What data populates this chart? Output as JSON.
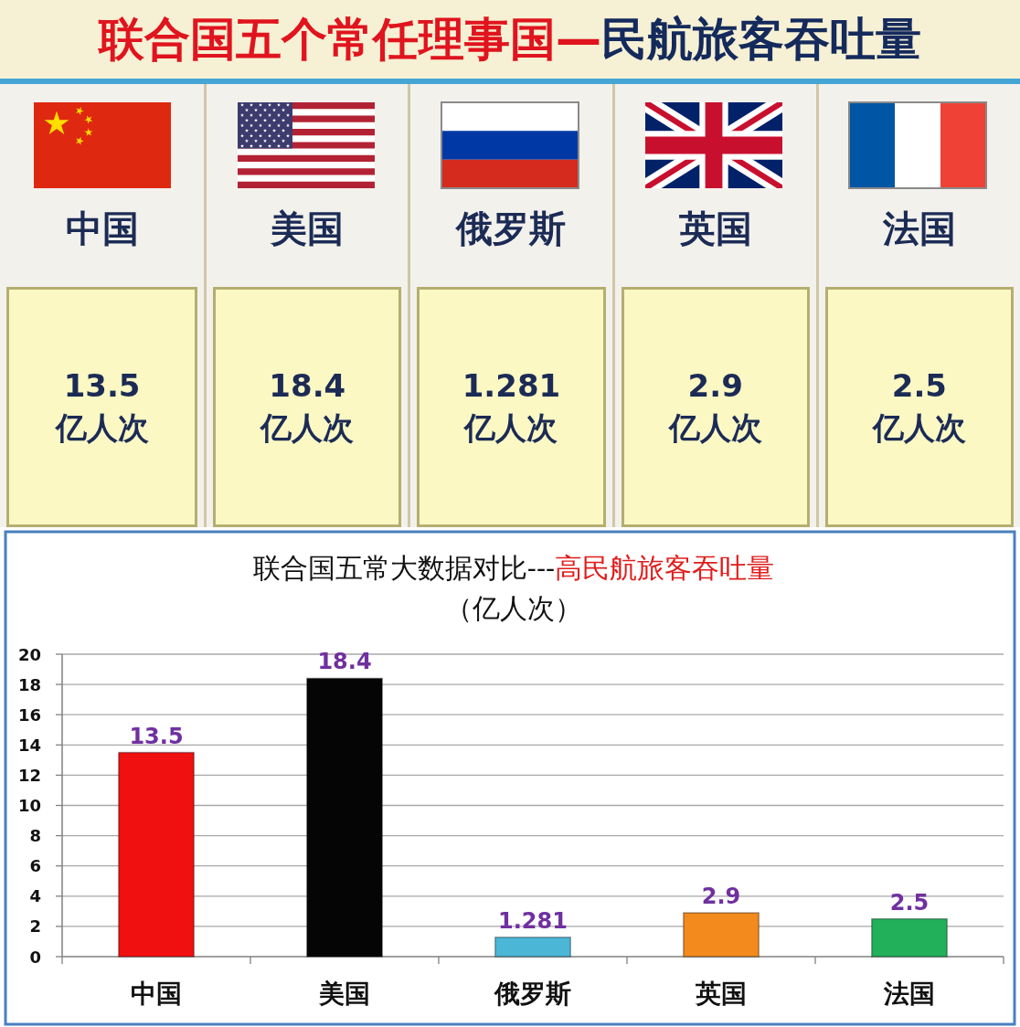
{
  "chart_data": [
    {
      "type": "other",
      "title": "联合国五个常任理事国—民航旅客吞吐量",
      "categories": [
        "中国",
        "美国",
        "俄罗斯",
        "英国",
        "法国"
      ],
      "annotations": [
        "13.5",
        "18.4",
        "1.281",
        "2.9",
        "2.5",
        "亿人次",
        "亿人次",
        "亿人次",
        "亿人次",
        "亿人次"
      ]
    },
    {
      "type": "bar",
      "title": "联合国五常大数据对比---高民航旅客吞吐量",
      "subtitle": "（亿人次）",
      "categories": [
        "中国",
        "美国",
        "俄罗斯",
        "英国",
        "法国"
      ],
      "values": [
        13.5,
        18.4,
        1.281,
        2.9,
        2.5
      ],
      "colors": [
        "#f01010",
        "#050505",
        "#4cb6d6",
        "#f28a1e",
        "#22b05a"
      ],
      "ylim": [
        0,
        20
      ],
      "yticks": [
        0,
        2,
        4,
        6,
        8,
        10,
        12,
        14,
        16,
        18,
        20
      ],
      "grid": "y",
      "data_labels": true
    }
  ]
}
